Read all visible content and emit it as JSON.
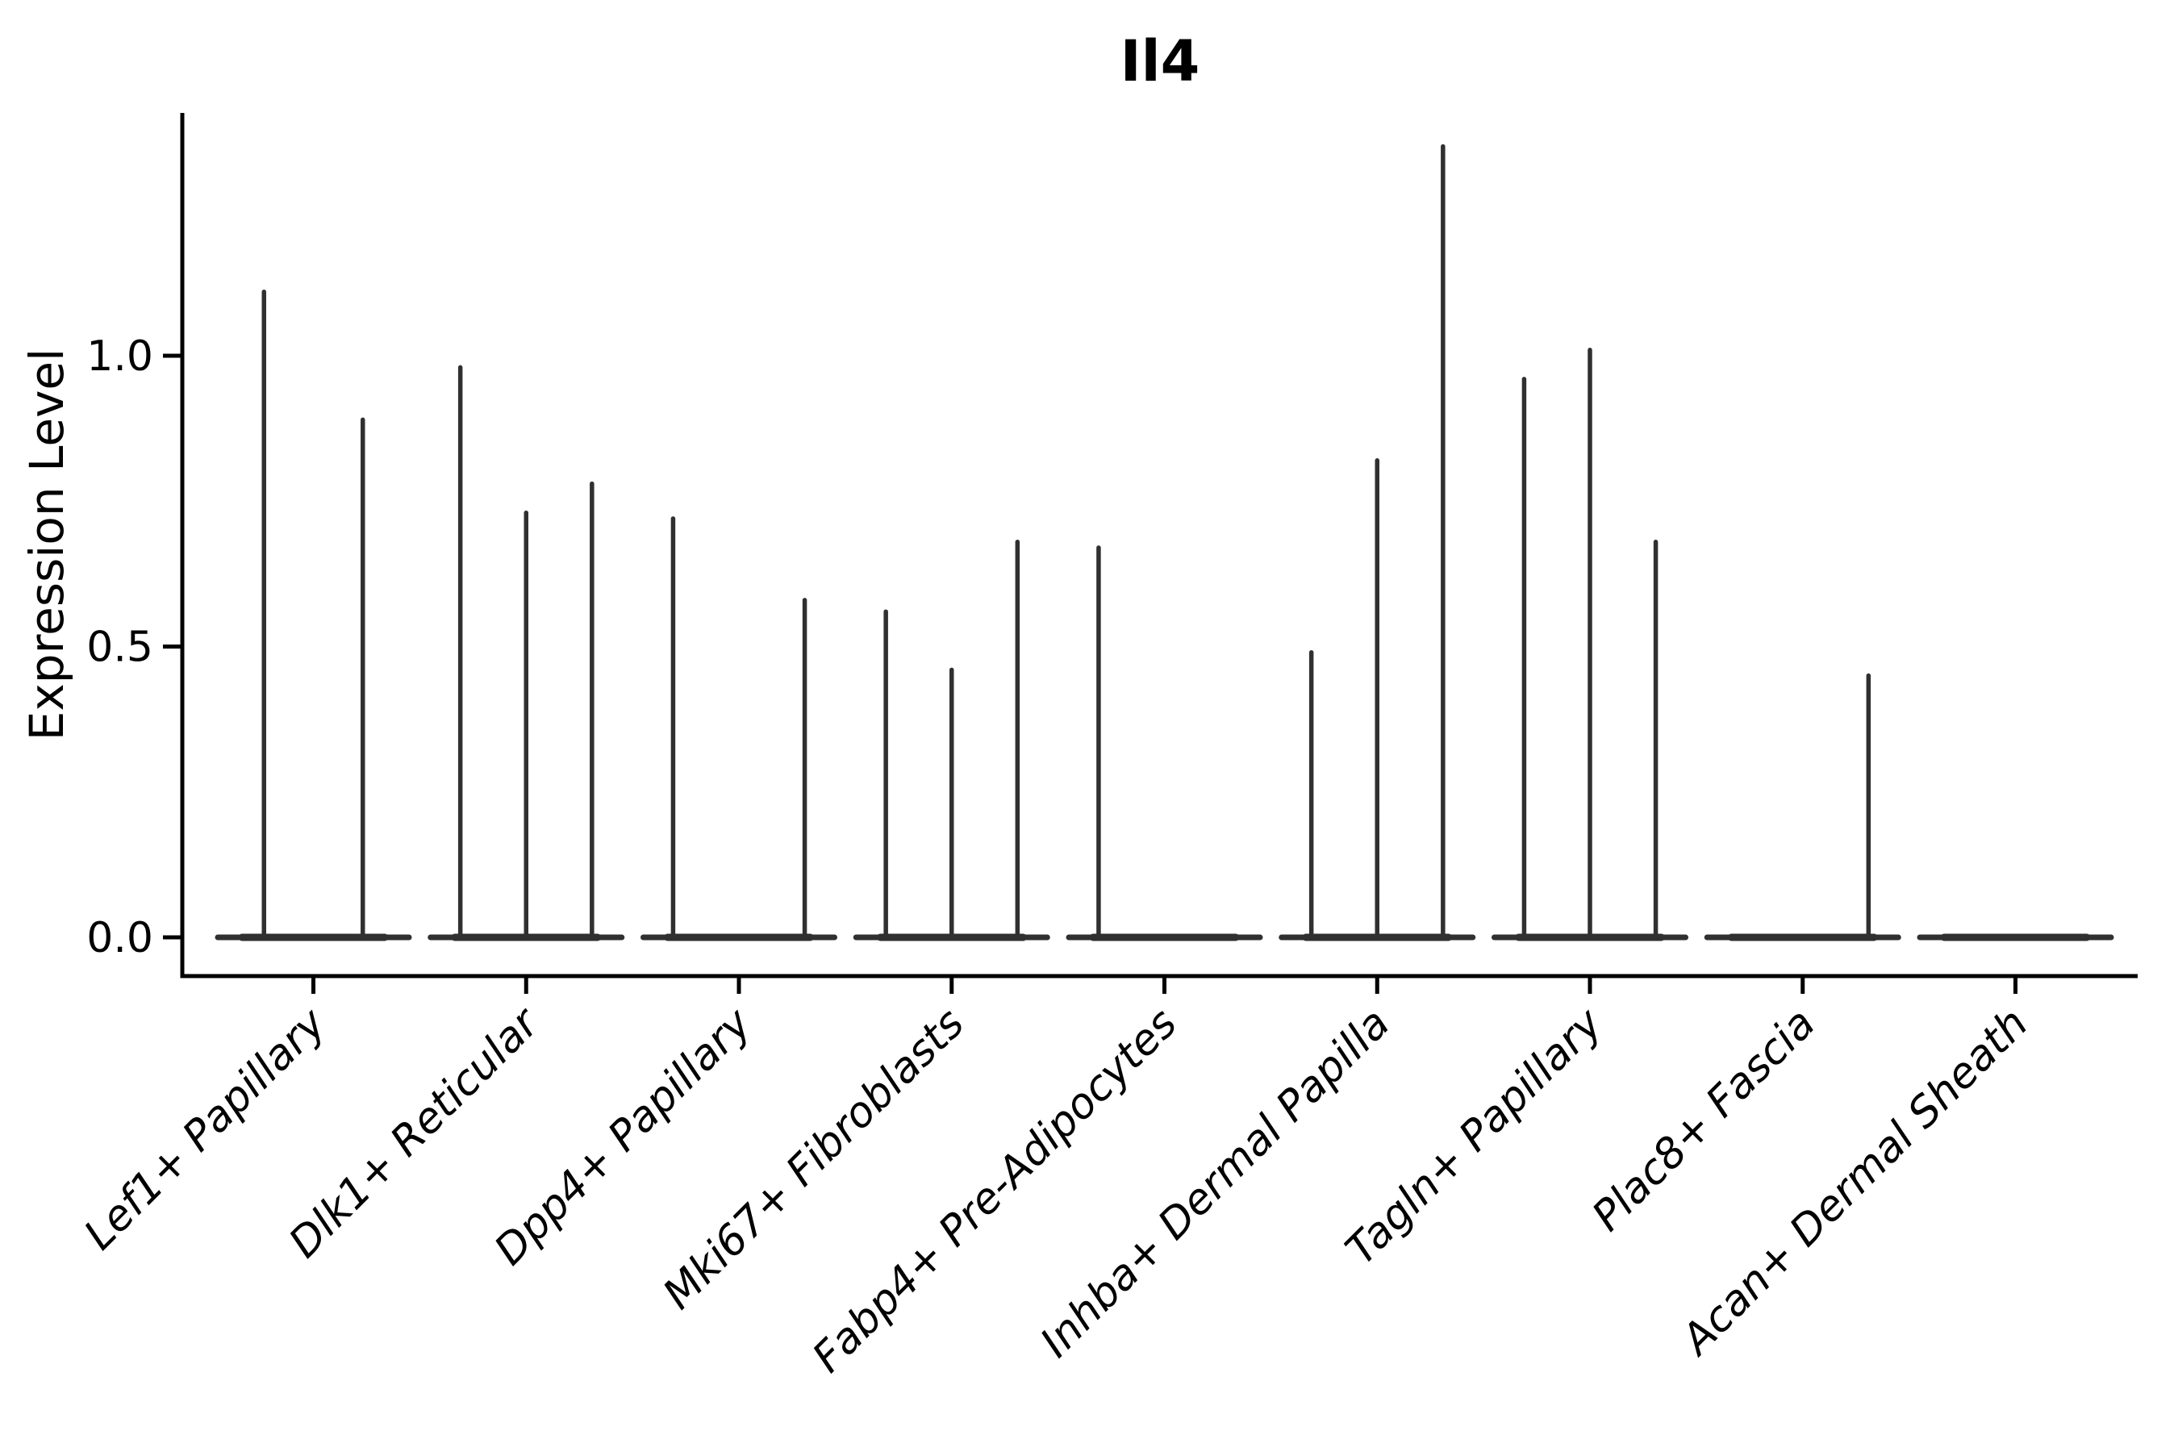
{
  "chart_data": {
    "type": "violin",
    "title": "Il4",
    "ylabel": "Expression Level",
    "xlabel": "",
    "yticks": [
      {
        "value": 0.0,
        "label": "0.0"
      },
      {
        "value": 0.5,
        "label": "0.5"
      },
      {
        "value": 1.0,
        "label": "1.0"
      }
    ],
    "ylim": [
      -0.07,
      1.42
    ],
    "grid": false,
    "legend": null,
    "baseline_value": 0.0,
    "categories": [
      {
        "label": "Lef1+ Papillary",
        "violins": [
          {
            "pos": 0.25,
            "max": 1.11
          },
          {
            "pos": 0.75,
            "max": 0.89
          }
        ]
      },
      {
        "label": "Dlk1+ Reticular",
        "violins": [
          {
            "pos": 0.167,
            "max": 0.98
          },
          {
            "pos": 0.5,
            "max": 0.73
          },
          {
            "pos": 0.833,
            "max": 0.78
          }
        ]
      },
      {
        "label": "Dpp4+ Papillary",
        "violins": [
          {
            "pos": 0.167,
            "max": 0.72
          },
          {
            "pos": 0.833,
            "max": 0.58
          }
        ]
      },
      {
        "label": "Mki67+ Fibroblasts",
        "violins": [
          {
            "pos": 0.167,
            "max": 0.56
          },
          {
            "pos": 0.5,
            "max": 0.46
          },
          {
            "pos": 0.833,
            "max": 0.68
          }
        ]
      },
      {
        "label": "Fabp4+ Pre-Adipocytes",
        "violins": [
          {
            "pos": 0.167,
            "max": 0.67
          }
        ]
      },
      {
        "label": "Inhba+ Dermal Papilla",
        "violins": [
          {
            "pos": 0.167,
            "max": 0.49
          },
          {
            "pos": 0.5,
            "max": 0.82
          },
          {
            "pos": 0.833,
            "max": 1.36
          }
        ]
      },
      {
        "label": "Tagln+ Papillary",
        "violins": [
          {
            "pos": 0.167,
            "max": 0.96
          },
          {
            "pos": 0.5,
            "max": 1.01
          },
          {
            "pos": 0.833,
            "max": 0.68
          }
        ]
      },
      {
        "label": "Plac8+ Fascia",
        "violins": [
          {
            "pos": 0.833,
            "max": 0.45
          }
        ]
      },
      {
        "label": "Acan+ Dermal Sheath",
        "violins": []
      }
    ],
    "colors": {
      "violin": "#303030",
      "axis": "#000000",
      "text": "#000000",
      "background": "#ffffff"
    }
  }
}
